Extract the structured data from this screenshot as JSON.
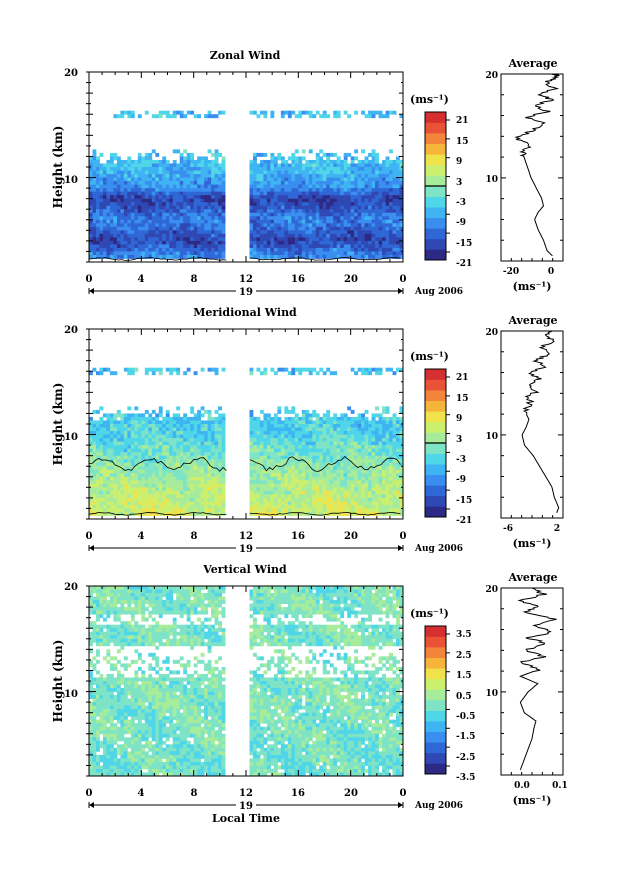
{
  "figure": {
    "xlabel": "Local Time",
    "date_label": "Aug 2006",
    "day_label": "19",
    "unit_label": "(ms⁻¹)",
    "avg_unit_label": "(ms⁻¹)",
    "colormap": [
      "#2d2a85",
      "#2f48b4",
      "#2f68d6",
      "#3a8ef0",
      "#3fb4f2",
      "#4fd6e8",
      "#7fe3c6",
      "#a6ec9a",
      "#cdef6e",
      "#f0e24a",
      "#f6b53a",
      "#f2853a",
      "#ea5236",
      "#d62f2f"
    ],
    "contour_color": "#000000"
  },
  "chart_data": [
    {
      "type": "heatmap",
      "title": "Zonal Wind",
      "ylabel": "Height (km)",
      "xlabel": "",
      "xticks": [
        "0",
        "4",
        "8",
        "12",
        "16",
        "20",
        "0"
      ],
      "yticks": [
        "20",
        "10"
      ],
      "ylim": [
        2,
        20
      ],
      "xlim": [
        0,
        24
      ],
      "data_gap_hours": [
        10.5,
        12.3
      ],
      "colorbar": {
        "ticks": [
          "21",
          "15",
          "9",
          "3",
          "-3",
          "-9",
          "-15",
          "-21"
        ],
        "range": [
          -24,
          24
        ],
        "contour_at": 0
      },
      "field_mean_profile": [
        [
          2,
          -10
        ],
        [
          3,
          -14
        ],
        [
          4,
          -19
        ],
        [
          5,
          -16
        ],
        [
          6,
          -13
        ],
        [
          7,
          -17
        ],
        [
          8,
          -20
        ],
        [
          9,
          -12
        ],
        [
          10,
          -9
        ],
        [
          11,
          -8
        ],
        [
          12,
          -7
        ]
      ],
      "avg_panel": {
        "title": "Average",
        "xticks": [
          "-20",
          "0"
        ],
        "xlim": [
          -27,
          8
        ],
        "profile": [
          [
            2.5,
            2
          ],
          [
            3,
            -1
          ],
          [
            4,
            -3
          ],
          [
            5,
            -6
          ],
          [
            6,
            -8
          ],
          [
            6.7,
            -6
          ],
          [
            7.3,
            -3
          ],
          [
            8,
            -4
          ],
          [
            9,
            -7
          ],
          [
            10,
            -10
          ],
          [
            11,
            -12
          ],
          [
            12,
            -14
          ],
          [
            12.5,
            -15
          ],
          [
            13.2,
            -10
          ],
          [
            13.8,
            -18
          ],
          [
            14.5,
            -10
          ],
          [
            15.2,
            -3
          ],
          [
            15.8,
            -12
          ],
          [
            16.4,
            -1
          ],
          [
            17,
            -9
          ],
          [
            17.5,
            2
          ],
          [
            18,
            -5
          ],
          [
            18.6,
            3
          ],
          [
            19.2,
            -2
          ],
          [
            19.7,
            5
          ],
          [
            20,
            3
          ]
        ]
      }
    },
    {
      "type": "heatmap",
      "title": "Meridional Wind",
      "ylabel": "Height (km)",
      "xlabel": "",
      "xticks": [
        "0",
        "4",
        "8",
        "12",
        "16",
        "20",
        "0"
      ],
      "yticks": [
        "20",
        "10"
      ],
      "ylim": [
        2,
        20
      ],
      "xlim": [
        0,
        24
      ],
      "data_gap_hours": [
        10.5,
        12.3
      ],
      "colorbar": {
        "ticks": [
          "21",
          "15",
          "9",
          "3",
          "-3",
          "-9",
          "-15",
          "-21"
        ],
        "range": [
          -24,
          24
        ],
        "contour_at": 0
      },
      "field_mean_profile": [
        [
          2,
          6
        ],
        [
          3,
          5
        ],
        [
          4,
          4
        ],
        [
          5,
          3
        ],
        [
          6,
          1
        ],
        [
          7,
          0
        ],
        [
          8,
          -2
        ],
        [
          9,
          -3
        ],
        [
          10,
          -5
        ],
        [
          11,
          -6
        ],
        [
          12,
          -7
        ]
      ],
      "avg_panel": {
        "title": "Average",
        "xticks": [
          "-6",
          "2"
        ],
        "xlim": [
          -7,
          3
        ],
        "profile": [
          [
            2.5,
            2
          ],
          [
            3,
            2.3
          ],
          [
            4,
            1.6
          ],
          [
            5,
            1.2
          ],
          [
            6,
            0.2
          ],
          [
            7,
            -0.8
          ],
          [
            8,
            -1.8
          ],
          [
            9,
            -3.2
          ],
          [
            10,
            -3.6
          ],
          [
            10.8,
            -2.9
          ],
          [
            11.5,
            -2.5
          ],
          [
            12.3,
            -3.2
          ],
          [
            13,
            -2.1
          ],
          [
            13.6,
            -3
          ],
          [
            14.2,
            -1.3
          ],
          [
            14.8,
            -2.6
          ],
          [
            15.4,
            -0.8
          ],
          [
            16,
            -2.2
          ],
          [
            16.6,
            0.5
          ],
          [
            17.2,
            -1.5
          ],
          [
            17.8,
            1
          ],
          [
            18.4,
            -0.5
          ],
          [
            19,
            1.5
          ],
          [
            19.6,
            0.5
          ],
          [
            20,
            1.2
          ]
        ]
      }
    },
    {
      "type": "heatmap",
      "title": "Vertical Wind",
      "ylabel": "Height (km)",
      "xlabel": "Local Time",
      "xticks": [
        "0",
        "4",
        "8",
        "12",
        "16",
        "20",
        "0"
      ],
      "yticks": [
        "20",
        "10"
      ],
      "ylim": [
        2,
        20
      ],
      "xlim": [
        0,
        24
      ],
      "data_gap_hours": [
        10.5,
        12.3
      ],
      "colorbar": {
        "ticks": [
          "3.5",
          "2.5",
          "1.5",
          "0.5",
          "-0.5",
          "-1.5",
          "-2.5",
          "-3.5"
        ],
        "range": [
          -4,
          4
        ],
        "contour_at": null
      },
      "field_mean_profile": [
        [
          2,
          -0.4
        ],
        [
          6,
          -0.3
        ],
        [
          10,
          -0.2
        ],
        [
          14,
          -0.3
        ],
        [
          20,
          -0.4
        ]
      ],
      "avg_panel": {
        "title": "Average",
        "xticks": [
          "0.0",
          "0.1"
        ],
        "xlim": [
          -0.05,
          0.11
        ],
        "profile": [
          [
            2.5,
            0.0
          ],
          [
            3.5,
            0.01
          ],
          [
            4.5,
            0.02
          ],
          [
            5.5,
            0.03
          ],
          [
            6.5,
            0.035
          ],
          [
            7.2,
            0.04
          ],
          [
            8,
            0.01
          ],
          [
            9,
            0.0
          ],
          [
            10,
            0.02
          ],
          [
            10.8,
            0.045
          ],
          [
            11.5,
            0.0
          ],
          [
            12.2,
            0.05
          ],
          [
            12.8,
            0.0
          ],
          [
            13.4,
            0.06
          ],
          [
            14,
            0.01
          ],
          [
            14.6,
            0.07
          ],
          [
            15.2,
            0.02
          ],
          [
            15.8,
            0.085
          ],
          [
            16.4,
            0.03
          ],
          [
            17,
            0.09
          ],
          [
            17.6,
            0.01
          ],
          [
            18.2,
            0.05
          ],
          [
            18.8,
            0.0
          ],
          [
            19.4,
            0.06
          ],
          [
            20,
            0.03
          ]
        ]
      }
    }
  ]
}
